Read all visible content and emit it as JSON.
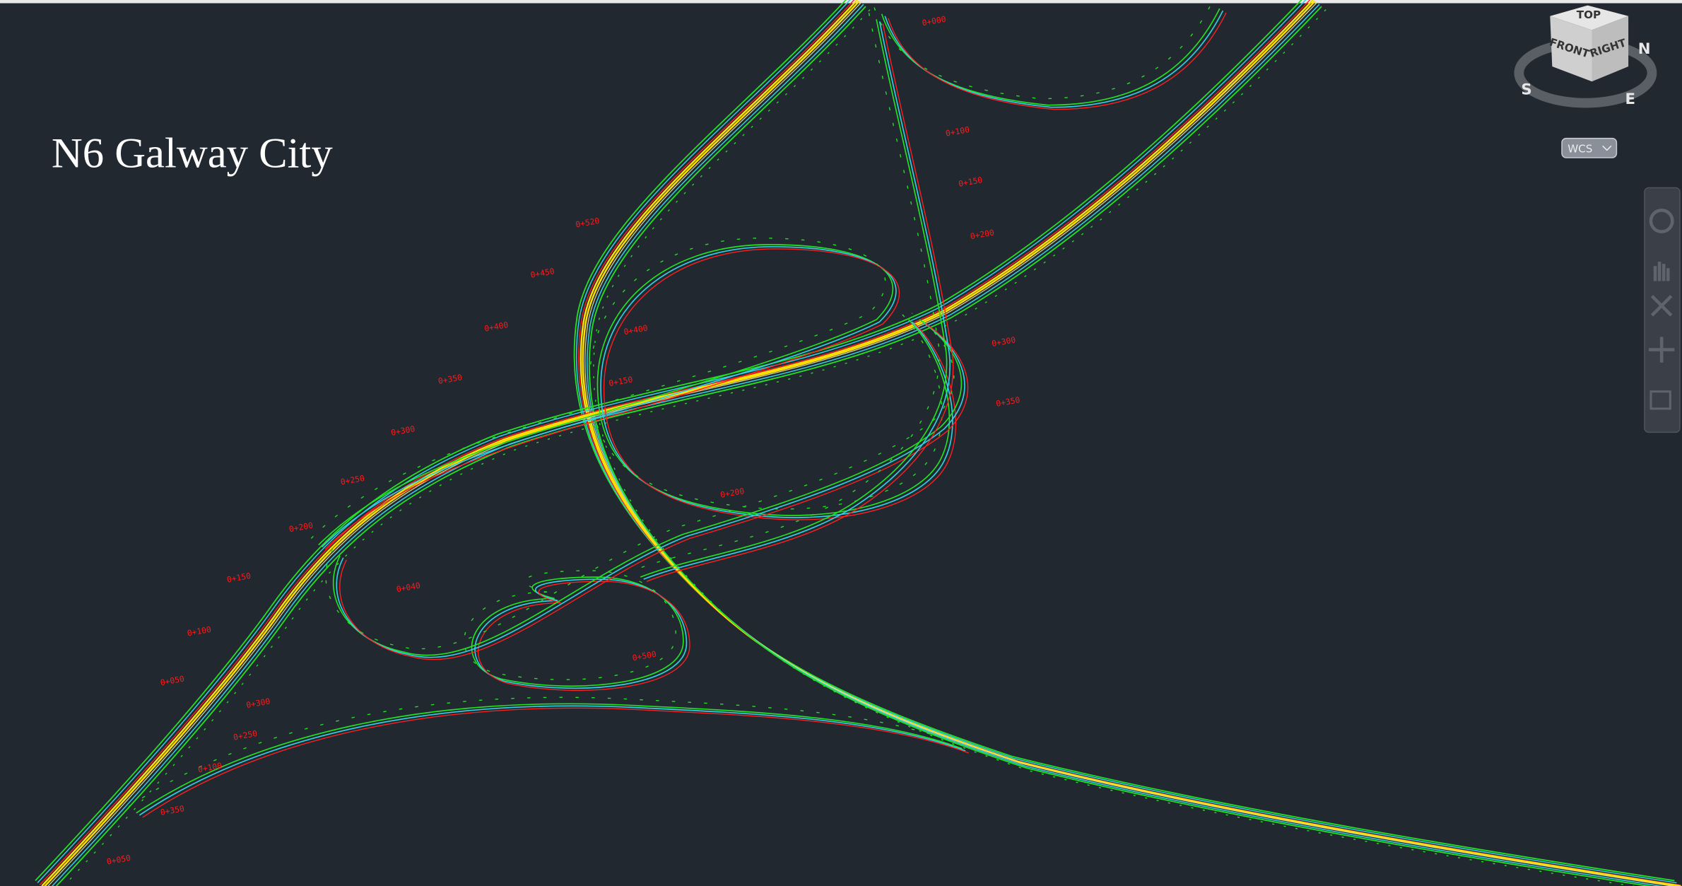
{
  "title": "N6 Galway City",
  "viewcube": {
    "top": "TOP",
    "front": "FRONT",
    "right": "RIGHT",
    "compass": {
      "north": "N",
      "south": "S",
      "east": "E"
    }
  },
  "ucs": "WCS",
  "chainages": [
    "0+520",
    "0+450",
    "0+400",
    "0+350",
    "0+300",
    "0+250",
    "0+200",
    "0+150",
    "0+100",
    "0+050",
    "0+040",
    "0+200",
    "0+000",
    "0+100",
    "0+150",
    "0+200",
    "0+300",
    "0+350",
    "0+400",
    "0+500",
    "0+250",
    "0+300",
    "0+350",
    "0+100",
    "0+050",
    "0+150"
  ]
}
